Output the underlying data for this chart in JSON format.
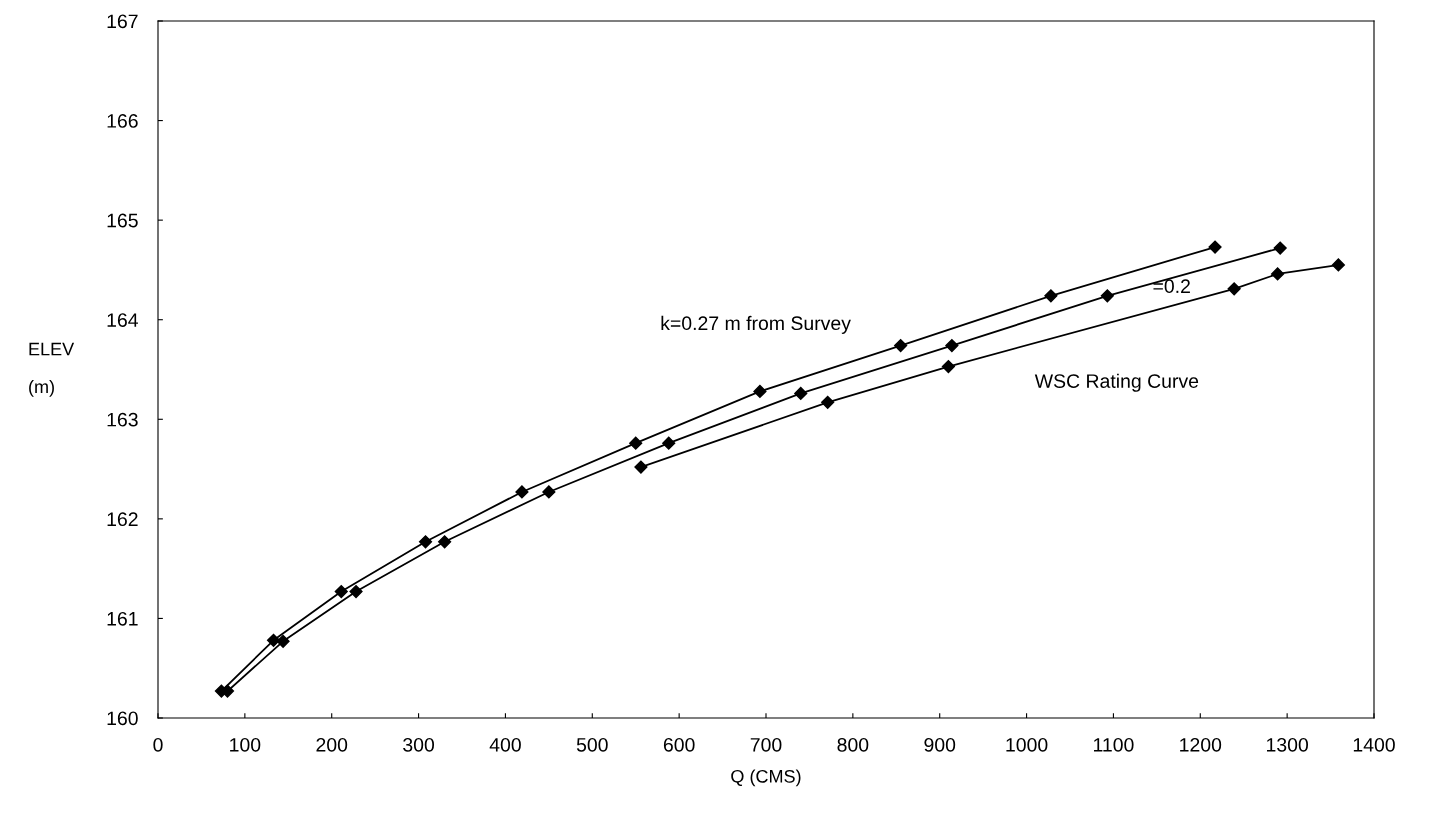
{
  "chart_data": {
    "type": "line",
    "xlabel": "Q (CMS)",
    "ylabel": "ELEV\n(m)",
    "xlim": [
      0,
      1400
    ],
    "xticks": [
      0,
      100,
      200,
      300,
      400,
      500,
      600,
      700,
      800,
      900,
      1000,
      1100,
      1200,
      1300,
      1400
    ],
    "ylim": [
      160,
      167
    ],
    "yticks": [
      160,
      161,
      162,
      163,
      164,
      165,
      166,
      167
    ],
    "grid": false,
    "legend": false,
    "line_style": "solid",
    "series": [
      {
        "color": "#000000",
        "marker": "diamond",
        "x": [
          73,
          133,
          211,
          308,
          419,
          550,
          693,
          855,
          1028,
          1217
        ],
        "values": [
          160.27,
          160.78,
          161.27,
          161.77,
          162.27,
          162.76,
          163.28,
          163.74,
          164.24,
          164.73
        ]
      },
      {
        "color": "#000000",
        "marker": "diamond",
        "x": [
          80,
          144,
          228,
          330,
          450,
          588,
          740,
          914,
          1093,
          1292
        ],
        "values": [
          160.27,
          160.77,
          161.27,
          161.77,
          162.27,
          162.76,
          163.26,
          163.74,
          164.24,
          164.72
        ]
      },
      {
        "color": "#000000",
        "marker": "diamond",
        "x": [
          556,
          771,
          910,
          1239,
          1289,
          1359
        ],
        "values": [
          162.52,
          163.17,
          163.53,
          164.31,
          164.46,
          164.55
        ]
      }
    ],
    "annotations": [
      "k=0.27 m from Survey",
      {
        "text": "=0.2",
        "x": 1145,
        "y": 164.32
      },
      "WSC Rating Curve"
    ]
  }
}
